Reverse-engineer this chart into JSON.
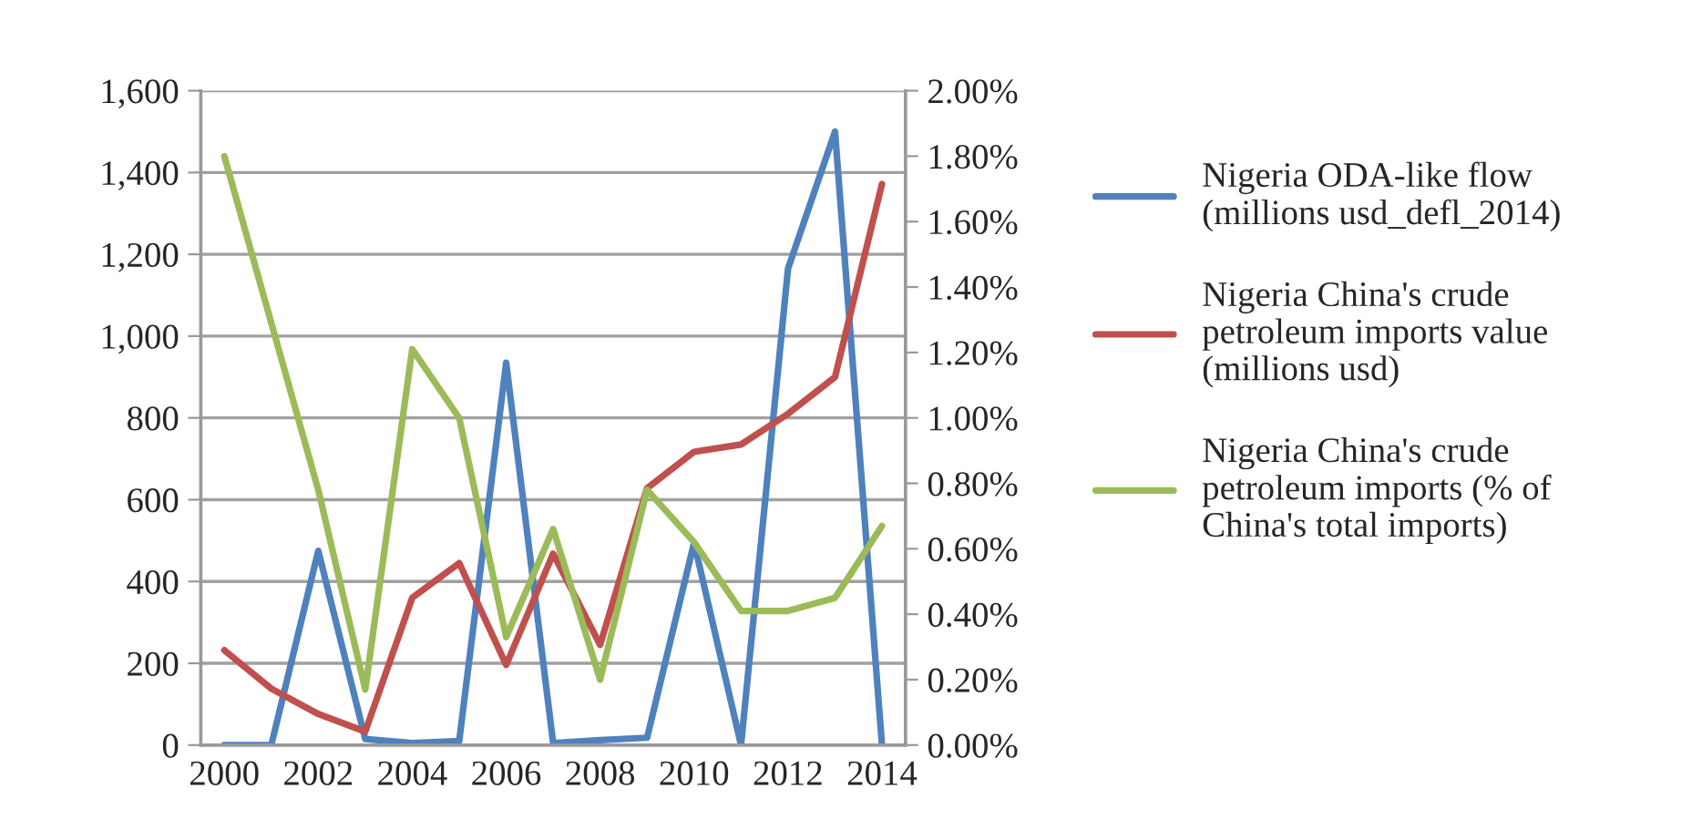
{
  "chart_data": {
    "type": "line",
    "categories": [
      "2000",
      null,
      "2002",
      null,
      "2004",
      null,
      "2006",
      null,
      "2008",
      null,
      "2010",
      null,
      "2012",
      null,
      "2014"
    ],
    "series": [
      {
        "name": "Nigeria ODA-like flow\n(millions usd_defl_2014)",
        "color": "#4f81bd",
        "values": [
          0,
          0,
          475,
          15,
          5,
          10,
          935,
          5,
          12,
          18,
          495,
          0,
          1165,
          1500,
          0
        ]
      },
      {
        "name": "Nigeria China's crude\npetroleum imports value\n(millions usd)",
        "color": "#c0504d",
        "values": [
          232,
          138,
          76,
          33,
          360,
          445,
          196,
          468,
          245,
          628,
          717,
          735,
          810,
          900,
          1372
        ]
      },
      {
        "name": "Nigeria China's crude\npetroleum imports (% of\nChina's total imports)",
        "color": "#9bbb59",
        "axis": "y2",
        "values": [
          1.8,
          1.29,
          0.78,
          0.17,
          1.21,
          1.0,
          0.33,
          0.66,
          0.2,
          0.78,
          0.62,
          0.41,
          0.41,
          0.45,
          0.67
        ]
      }
    ],
    "ylim": [
      0,
      1600
    ],
    "yticks": [
      0,
      200,
      400,
      600,
      800,
      {
        "value": 1000,
        "label": "1,000"
      },
      {
        "value": 1200,
        "label": "1,200"
      },
      {
        "value": 1400,
        "label": "1,400"
      },
      {
        "value": 1600,
        "label": "1,600"
      }
    ],
    "y2lim": [
      0,
      2.0
    ],
    "y2ticks": [
      {
        "value": 0,
        "label": "0.00%"
      },
      {
        "value": 0.2,
        "label": "0.20%"
      },
      {
        "value": 0.4,
        "label": "0.40%"
      },
      {
        "value": 0.6,
        "label": "0.60%"
      },
      {
        "value": 0.8,
        "label": "0.80%"
      },
      {
        "value": 1.0,
        "label": "1.00%"
      },
      {
        "value": 1.2,
        "label": "1.20%"
      },
      {
        "value": 1.4,
        "label": "1.40%"
      },
      {
        "value": 1.6,
        "label": "1.60%"
      },
      {
        "value": 1.8,
        "label": "1.80%"
      },
      {
        "value": 2.0,
        "label": "2.00%"
      }
    ],
    "grid": "y",
    "legend": "right",
    "marker": "none",
    "line_style": "solid"
  }
}
